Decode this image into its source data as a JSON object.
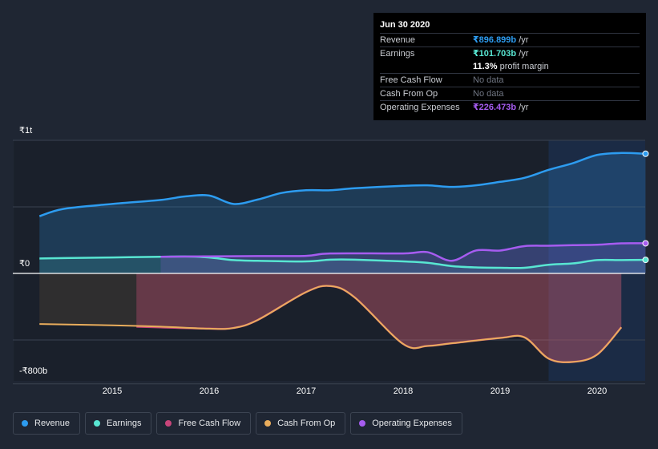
{
  "tooltip": {
    "date": "Jun 30 2020",
    "rows": [
      {
        "label": "Revenue",
        "value": "₹896.899b",
        "unit": " /yr",
        "color": "#2d9cf0"
      },
      {
        "label": "Earnings",
        "value": "₹101.703b",
        "unit": " /yr",
        "color": "#58e6d2"
      },
      {
        "label": "",
        "value": "11.3%",
        "unit": " profit margin",
        "color": "#ffffff"
      },
      {
        "label": "Free Cash Flow",
        "value": "No data",
        "unit": "",
        "color": "#6f7582"
      },
      {
        "label": "Cash From Op",
        "value": "No data",
        "unit": "",
        "color": "#6f7582"
      },
      {
        "label": "Operating Expenses",
        "value": "₹226.473b",
        "unit": " /yr",
        "color": "#a65cf0"
      }
    ]
  },
  "legend": [
    {
      "label": "Revenue",
      "color": "#2d9cf0"
    },
    {
      "label": "Earnings",
      "color": "#58e6d2"
    },
    {
      "label": "Free Cash Flow",
      "color": "#c8457a"
    },
    {
      "label": "Cash From Op",
      "color": "#e9ad5c"
    },
    {
      "label": "Operating Expenses",
      "color": "#a65cf0"
    }
  ],
  "chart_data": {
    "type": "line",
    "title": "",
    "xlabel": "",
    "ylabel": "",
    "y_unit": "₹ billions",
    "ylim": [
      -800,
      1000
    ],
    "xlim": [
      2014.25,
      2020.5
    ],
    "y_tick_labels": [
      {
        "value": 1000,
        "label": "₹1t"
      },
      {
        "value": 0,
        "label": "₹0"
      },
      {
        "value": -800,
        "label": "-₹800b"
      }
    ],
    "x_ticks": [
      2015,
      2016,
      2017,
      2018,
      2019,
      2020
    ],
    "x_tick_labels": [
      "2015",
      "2016",
      "2017",
      "2018",
      "2019",
      "2020"
    ],
    "highlight_start": 2019.5,
    "series": [
      {
        "name": "Revenue",
        "color": "#2d9cf0",
        "points": [
          [
            2014.25,
            430
          ],
          [
            2014.5,
            485
          ],
          [
            2015,
            522
          ],
          [
            2015.5,
            552
          ],
          [
            2015.75,
            578
          ],
          [
            2016,
            585
          ],
          [
            2016.25,
            522
          ],
          [
            2016.5,
            555
          ],
          [
            2016.75,
            605
          ],
          [
            2017,
            625
          ],
          [
            2017.25,
            625
          ],
          [
            2017.5,
            640
          ],
          [
            2018,
            658
          ],
          [
            2018.25,
            662
          ],
          [
            2018.5,
            650
          ],
          [
            2018.75,
            662
          ],
          [
            2019,
            688
          ],
          [
            2019.25,
            718
          ],
          [
            2019.5,
            778
          ],
          [
            2019.75,
            828
          ],
          [
            2020,
            890
          ],
          [
            2020.25,
            905
          ],
          [
            2020.5,
            899
          ]
        ]
      },
      {
        "name": "Earnings",
        "color": "#58e6d2",
        "points": [
          [
            2014.25,
            112
          ],
          [
            2014.5,
            115
          ],
          [
            2015,
            120
          ],
          [
            2015.5,
            125
          ],
          [
            2015.75,
            127
          ],
          [
            2016,
            120
          ],
          [
            2016.25,
            100
          ],
          [
            2016.5,
            95
          ],
          [
            2017,
            90
          ],
          [
            2017.25,
            103
          ],
          [
            2017.5,
            103
          ],
          [
            2018,
            90
          ],
          [
            2018.25,
            80
          ],
          [
            2018.5,
            55
          ],
          [
            2018.75,
            45
          ],
          [
            2019,
            42
          ],
          [
            2019.25,
            42
          ],
          [
            2019.5,
            65
          ],
          [
            2019.75,
            75
          ],
          [
            2020,
            100
          ],
          [
            2020.25,
            100
          ],
          [
            2020.5,
            102
          ]
        ]
      },
      {
        "name": "Free Cash Flow",
        "color": "#c8457a",
        "points": [
          [
            2015.25,
            -400
          ],
          [
            2015.5,
            -405
          ],
          [
            2016,
            -415
          ],
          [
            2016.25,
            -410
          ],
          [
            2016.5,
            -350
          ],
          [
            2017,
            -140
          ],
          [
            2017.25,
            -95
          ],
          [
            2017.5,
            -180
          ],
          [
            2018,
            -530
          ],
          [
            2018.25,
            -545
          ],
          [
            2018.5,
            -525
          ],
          [
            2019,
            -485
          ],
          [
            2019.25,
            -480
          ],
          [
            2019.5,
            -640
          ],
          [
            2019.75,
            -665
          ],
          [
            2020,
            -610
          ],
          [
            2020.25,
            -405
          ]
        ]
      },
      {
        "name": "Cash From Op",
        "color": "#e9ad5c",
        "points": [
          [
            2014.25,
            -380
          ],
          [
            2015,
            -390
          ],
          [
            2015.5,
            -400
          ],
          [
            2016,
            -415
          ],
          [
            2016.25,
            -410
          ],
          [
            2016.5,
            -350
          ],
          [
            2017,
            -140
          ],
          [
            2017.25,
            -95
          ],
          [
            2017.5,
            -180
          ],
          [
            2018,
            -530
          ],
          [
            2018.25,
            -545
          ],
          [
            2018.5,
            -525
          ],
          [
            2019,
            -485
          ],
          [
            2019.25,
            -480
          ],
          [
            2019.5,
            -640
          ],
          [
            2019.75,
            -665
          ],
          [
            2020,
            -610
          ],
          [
            2020.25,
            -405
          ]
        ]
      },
      {
        "name": "Operating Expenses",
        "color": "#a65cf0",
        "points": [
          [
            2015.5,
            125
          ],
          [
            2016,
            128
          ],
          [
            2016.5,
            130
          ],
          [
            2017,
            132
          ],
          [
            2017.25,
            150
          ],
          [
            2018,
            150
          ],
          [
            2018.25,
            160
          ],
          [
            2018.5,
            95
          ],
          [
            2018.75,
            172
          ],
          [
            2019,
            172
          ],
          [
            2019.25,
            205
          ],
          [
            2019.5,
            208
          ],
          [
            2019.75,
            212
          ],
          [
            2020,
            215
          ],
          [
            2020.25,
            226
          ],
          [
            2020.5,
            226
          ]
        ]
      }
    ]
  }
}
